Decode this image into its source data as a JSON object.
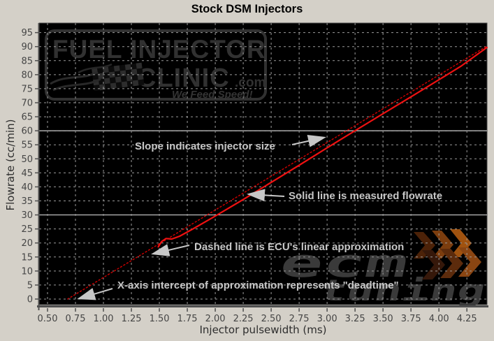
{
  "window": {
    "title": "Stock DSM Injectors"
  },
  "chart_data": {
    "type": "line",
    "title": "Stock DSM Injectors",
    "xlabel": "Injector pulsewidth (ms)",
    "ylabel": "Flowrate (cc/min)",
    "xlim": [
      0.425,
      4.43
    ],
    "ylim": [
      -2,
      98.4
    ],
    "x_ticks": [
      0.5,
      0.75,
      1.0,
      1.25,
      1.5,
      1.75,
      2.0,
      2.25,
      2.5,
      2.75,
      3.0,
      3.25,
      3.5,
      3.75,
      4.0,
      4.25
    ],
    "x_tick_labels": [
      "0.50",
      "0.75",
      "1.00",
      "1.25",
      "1.50",
      "1.75",
      "2.00",
      "2.25",
      "2.50",
      "2.75",
      "3.00",
      "3.25",
      "3.50",
      "3.75",
      "4.00",
      "4.25"
    ],
    "y_ticks": [
      0,
      5,
      10,
      15,
      20,
      25,
      30,
      35,
      40,
      45,
      50,
      55,
      60,
      65,
      70,
      75,
      80,
      85,
      90,
      95
    ],
    "y_tick_labels": [
      "0",
      "5",
      "10",
      "15",
      "20",
      "25",
      "30",
      "35",
      "40",
      "45",
      "50",
      "55",
      "60",
      "65",
      "70",
      "75",
      "80",
      "85",
      "90",
      "95"
    ],
    "grid": "dashed",
    "solid_gridlines_y": [
      30,
      60
    ],
    "legend_position": "none",
    "series": [
      {
        "name": "ECU linear approximation (dashed)",
        "style": "dashed",
        "color": "#c40000",
        "points": [
          [
            0.68,
            0
          ],
          [
            4.43,
            90.2
          ]
        ]
      },
      {
        "name": "Measured flowrate (solid)",
        "style": "solid",
        "color": "#ee1111",
        "points": [
          [
            1.49,
            18.6
          ],
          [
            1.52,
            20.5
          ],
          [
            1.56,
            21.6
          ],
          [
            1.61,
            21.4
          ],
          [
            1.68,
            22.4
          ],
          [
            1.8,
            25.0
          ],
          [
            2.0,
            29.6
          ],
          [
            2.25,
            35.5
          ],
          [
            2.5,
            41.6
          ],
          [
            2.75,
            47.7
          ],
          [
            3.0,
            53.9
          ],
          [
            3.25,
            60.0
          ],
          [
            3.5,
            66.1
          ],
          [
            3.75,
            72.1
          ],
          [
            4.0,
            78.2
          ],
          [
            4.2,
            83.1
          ],
          [
            4.43,
            89.7
          ]
        ]
      }
    ],
    "x_intercept_deadtime_ms": 0.68,
    "slope_cc_min_per_ms": 24.1
  },
  "annotations": [
    {
      "text": "Slope indicates injector size"
    },
    {
      "text": "Solid line is measured flowrate"
    },
    {
      "text": "Dashed line is ECU's linear approximation"
    },
    {
      "text": "X-axis intercept of approximation represents \"deadtime\""
    }
  ],
  "watermarks": {
    "fic": {
      "line1": "FUEL INJECTOR",
      "line2": "CLINIC",
      "suffix": ".com",
      "tagline": "We Feed Speed!"
    },
    "ecm": {
      "line1": "ecm",
      "line2": "tuning"
    }
  },
  "colors": {
    "background": "#d4d0c8",
    "plot_background": "#000000",
    "grid": "#9b9b9b",
    "solid_gridline": "#cdcdcd",
    "axis": "#4f4f4f",
    "tick_text": "#454545",
    "measured_line": "#ee1111",
    "approx_line": "#c40000",
    "annotation_text": "#c7c7c7",
    "fic_watermark": "#313131",
    "ecm_watermark": "#3a3a3a",
    "chevrons": [
      "#4c2208",
      "#7c3d0e",
      "#a0520f",
      "#36180a",
      "#5c2b0c",
      "#8a4512"
    ]
  }
}
